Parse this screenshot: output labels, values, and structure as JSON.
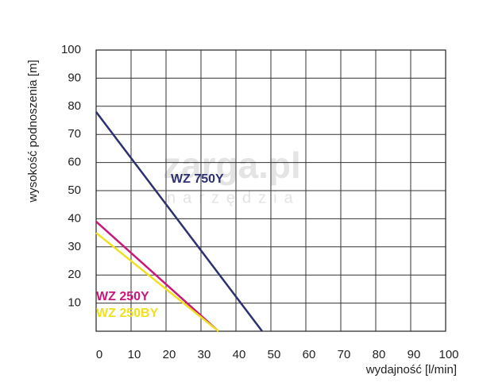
{
  "chart_data": {
    "type": "line",
    "xlabel": "wydajność [l/min]",
    "ylabel": "wysokość podnoszenia [m]",
    "watermark": [
      "zarga.pl",
      "narzędzia"
    ],
    "xlim": [
      0,
      100
    ],
    "xticks": [
      0,
      10,
      20,
      30,
      40,
      50,
      60,
      70,
      80,
      90,
      100
    ],
    "ylim": [
      0,
      100
    ],
    "yticks": [
      10,
      20,
      30,
      40,
      50,
      60,
      70,
      80,
      90,
      100
    ],
    "grid": true,
    "series": [
      {
        "name": "WZ 750Y",
        "color": "#2e3170",
        "x": [
          0,
          47.5
        ],
        "values": [
          78,
          0
        ]
      },
      {
        "name": "WZ 250Y",
        "color": "#c8187c",
        "x": [
          0,
          35
        ],
        "values": [
          39,
          0
        ]
      },
      {
        "name": "WZ 250BY",
        "color": "#f0e020",
        "x": [
          0,
          35
        ],
        "values": [
          35,
          0
        ]
      }
    ]
  }
}
